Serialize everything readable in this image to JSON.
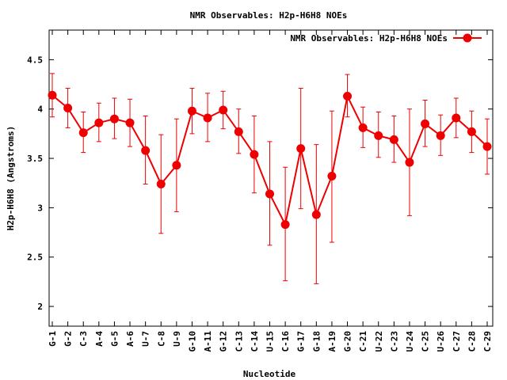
{
  "chart_data": {
    "type": "line",
    "title": "NMR Observables: H2p-H6H8 NOEs",
    "xlabel": "Nucleotide",
    "ylabel": "H2p-H6H8 (Angstroms)",
    "ylim": [
      1.8,
      4.8
    ],
    "yticks": [
      "2",
      "2.5",
      "3",
      "3.5",
      "4",
      "4.5"
    ],
    "legend_position": "top-right",
    "grid": false,
    "categories": [
      "G-1",
      "G-2",
      "C-3",
      "A-4",
      "G-5",
      "A-6",
      "U-7",
      "C-8",
      "U-9",
      "G-10",
      "A-11",
      "G-12",
      "C-13",
      "C-14",
      "U-15",
      "C-16",
      "G-17",
      "G-18",
      "A-19",
      "G-20",
      "C-21",
      "U-22",
      "C-23",
      "U-24",
      "C-25",
      "U-26",
      "C-27",
      "C-28",
      "C-29"
    ],
    "series": [
      {
        "name": "NMR Observables: H2p-H6H8 NOEs",
        "color": "#ee0000",
        "values": [
          4.14,
          4.01,
          3.76,
          3.86,
          3.9,
          3.86,
          3.58,
          3.24,
          3.43,
          3.98,
          3.91,
          3.99,
          3.77,
          3.54,
          3.14,
          2.83,
          3.6,
          2.93,
          3.32,
          4.13,
          3.81,
          3.73,
          3.69,
          3.46,
          3.85,
          3.73,
          3.91,
          3.77,
          3.62
        ],
        "err_low": [
          3.92,
          3.81,
          3.56,
          3.67,
          3.7,
          3.62,
          3.24,
          2.74,
          2.96,
          3.75,
          3.67,
          3.8,
          3.55,
          3.15,
          2.62,
          2.26,
          2.99,
          2.23,
          2.65,
          3.92,
          3.61,
          3.51,
          3.46,
          2.92,
          3.62,
          3.53,
          3.71,
          3.56,
          3.34
        ],
        "err_high": [
          4.36,
          4.21,
          3.97,
          4.06,
          4.11,
          4.1,
          3.93,
          3.74,
          3.9,
          4.21,
          4.16,
          4.18,
          4.0,
          3.93,
          3.67,
          3.41,
          4.21,
          3.64,
          3.98,
          4.35,
          4.02,
          3.97,
          3.93,
          4.0,
          4.09,
          3.94,
          4.11,
          3.98,
          3.9
        ]
      }
    ]
  }
}
